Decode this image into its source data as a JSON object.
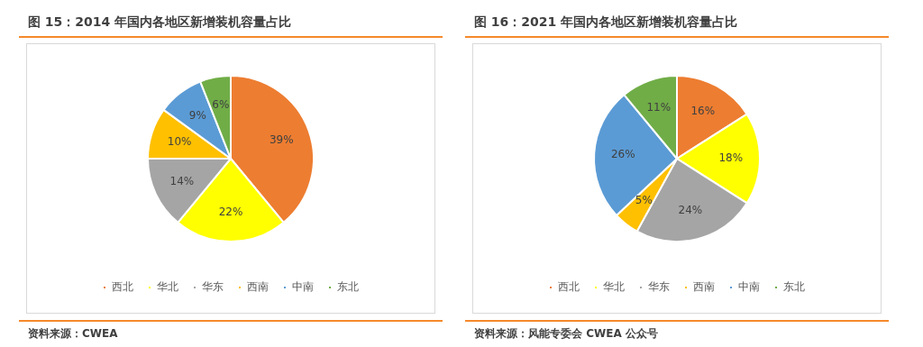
{
  "chart_data": [
    {
      "type": "pie",
      "title": "图 15：2014 年国内各地区新增装机容量占比",
      "categories": [
        "西北",
        "华北",
        "华东",
        "西南",
        "中南",
        "东北"
      ],
      "values": [
        39,
        22,
        14,
        10,
        9,
        6
      ],
      "value_labels": [
        "39%",
        "22%",
        "14%",
        "10%",
        "9%",
        "6%"
      ],
      "colors": [
        "#ed7d31",
        "#ffff00",
        "#a5a5a5",
        "#ffc000",
        "#5b9bd5",
        "#70ad47"
      ],
      "legend": "bottom",
      "annotations": [
        "资料来源：CWEA"
      ]
    },
    {
      "type": "pie",
      "title": "图 16：2021 年国内各地区新增装机容量占比",
      "categories": [
        "西北",
        "华北",
        "华东",
        "西南",
        "中南",
        "东北"
      ],
      "values": [
        16,
        18,
        24,
        5,
        26,
        11
      ],
      "value_labels": [
        "16%",
        "18%",
        "24%",
        "5%",
        "26%",
        "11%"
      ],
      "colors": [
        "#ed7d31",
        "#ffff00",
        "#a5a5a5",
        "#ffc000",
        "#5b9bd5",
        "#70ad47"
      ],
      "legend": "bottom",
      "annotations": [
        "资料来源：风能专委会 CWEA 公众号"
      ]
    }
  ]
}
